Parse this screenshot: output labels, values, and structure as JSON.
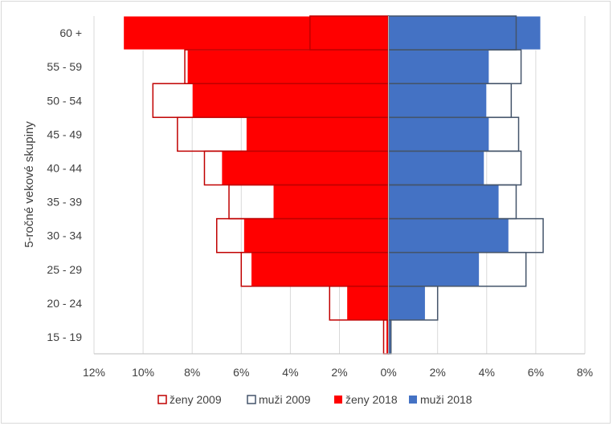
{
  "chart_data": {
    "type": "bar",
    "orientation": "horizontal-pyramid",
    "title": "",
    "xlabel": "",
    "ylabel": "5-ročné vekové skupiny",
    "categories": [
      "15 - 19",
      "20 - 24",
      "25 - 29",
      "30 - 34",
      "35 - 39",
      "40 - 44",
      "45 - 49",
      "50 - 54",
      "55 - 59",
      "60 +"
    ],
    "xlim": [
      -12,
      8
    ],
    "xticks": [
      -12,
      -10,
      -8,
      -6,
      -4,
      -2,
      0,
      2,
      4,
      6,
      8
    ],
    "xtick_labels": [
      "12%",
      "10%",
      "8%",
      "6%",
      "4%",
      "2%",
      "0%",
      "2%",
      "4%",
      "6%",
      "8%"
    ],
    "grid": true,
    "legend_position": "bottom",
    "series": [
      {
        "name": "ženy 2009",
        "side": "left",
        "style": "outline",
        "color": "#c00000",
        "values": [
          0.2,
          2.4,
          6.0,
          7.0,
          6.5,
          7.5,
          8.6,
          9.6,
          8.3,
          3.2
        ]
      },
      {
        "name": "muži 2009",
        "side": "right",
        "style": "outline",
        "color": "#44546a",
        "values": [
          0.1,
          2.0,
          5.6,
          6.3,
          5.2,
          5.4,
          5.3,
          5.0,
          5.4,
          5.2
        ]
      },
      {
        "name": "ženy 2018",
        "side": "left",
        "style": "filled",
        "color": "#ff0000",
        "values": [
          0.1,
          1.7,
          5.6,
          5.9,
          4.7,
          6.8,
          5.8,
          8.0,
          8.2,
          10.8
        ]
      },
      {
        "name": "muži 2018",
        "side": "right",
        "style": "filled",
        "color": "#4472c4",
        "values": [
          0.1,
          1.5,
          3.7,
          4.9,
          4.5,
          3.9,
          4.1,
          4.0,
          4.1,
          6.2
        ]
      }
    ]
  }
}
